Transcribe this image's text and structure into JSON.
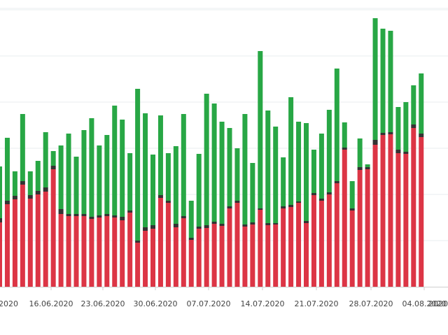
{
  "chart_data": {
    "type": "bar",
    "stacked": true,
    "grid": true,
    "ylim": [
      0,
      410
    ],
    "colors": {
      "series_1": "#dc3545",
      "series_2": "#333333",
      "series_3": "#28a745",
      "grid": "#e9ecef",
      "axis": "#cfcfcf"
    },
    "x_tick_labels": [
      "16.06.2020",
      "23.06.2020",
      "30.06.2020",
      "07.07.2020",
      "14.07.2020",
      "21.07.2020",
      "28.07.2020",
      "04.08.2020"
    ],
    "left_cut_label": "2020",
    "right_cut_label": "2020",
    "series": [
      {
        "values": [
          92,
          118,
          125,
          146,
          126,
          132,
          136,
          168,
          104,
          101,
          101,
          101,
          97,
          99,
          101,
          99,
          95,
          106,
          63,
          80,
          83,
          127,
          120,
          85,
          98,
          67,
          83,
          84,
          90,
          87,
          112,
          120,
          86,
          89,
          110,
          88,
          89,
          112,
          114,
          120,
          91,
          131,
          123,
          132,
          148,
          196,
          109,
          167,
          168,
          203,
          217,
          218,
          191,
          190,
          227,
          214
        ]
      },
      {
        "values": [
          6,
          5,
          5,
          5,
          5,
          5,
          6,
          5,
          7,
          3,
          3,
          3,
          3,
          3,
          3,
          3,
          5,
          3,
          3,
          5,
          5,
          4,
          3,
          5,
          3,
          3,
          3,
          4,
          3,
          3,
          3,
          3,
          3,
          3,
          2,
          3,
          2,
          3,
          3,
          2,
          3,
          3,
          3,
          3,
          3,
          3,
          3,
          4,
          3,
          7,
          3,
          3,
          5,
          3,
          5,
          5
        ]
      },
      {
        "values": [
          74,
          90,
          35,
          96,
          34,
          43,
          79,
          21,
          91,
          115,
          82,
          120,
          141,
          100,
          113,
          157,
          139,
          82,
          217,
          163,
          101,
          114,
          68,
          111,
          146,
          53,
          104,
          188,
          169,
          146,
          112,
          75,
          158,
          85,
          225,
          161,
          138,
          70,
          154,
          114,
          140,
          62,
          93,
          118,
          161,
          36,
          39,
          41,
          4,
          174,
          149,
          145,
          61,
          71,
          56,
          86
        ]
      }
    ]
  }
}
